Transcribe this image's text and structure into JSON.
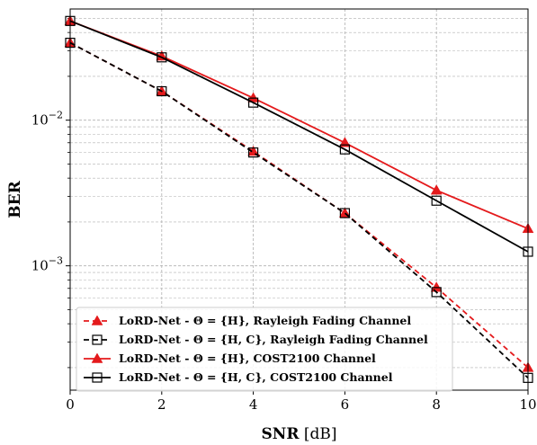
{
  "chart_data": {
    "type": "line",
    "xlabel": "SNR [dB]",
    "ylabel": "BER",
    "x_tick_labels": [
      "0",
      "2",
      "4",
      "6",
      "8",
      "10"
    ],
    "y_tick_labels": [
      "10^-2",
      "10^-3"
    ],
    "xlim": [
      0,
      10
    ],
    "ylim": [
      0.00014,
      0.058
    ],
    "y_scale": "log",
    "grid": true,
    "legend_position": "lower-left",
    "series": [
      {
        "name": "LoRD-Net - Θ = {H}, Rayleigh Fading Channel",
        "color": "#e41a1c",
        "line": "dashed",
        "marker": "triangle-filled",
        "x": [
          0,
          2,
          4,
          6,
          8,
          10
        ],
        "y": [
          0.034,
          0.0158,
          0.0061,
          0.0023,
          0.00071,
          0.0002
        ]
      },
      {
        "name": "LoRD-Net - Θ = {H, C}, Rayleigh Fading Channel",
        "color": "#000000",
        "line": "dashed",
        "marker": "square-open",
        "x": [
          0,
          2,
          4,
          6,
          8,
          10
        ],
        "y": [
          0.034,
          0.0158,
          0.006,
          0.0023,
          0.00066,
          0.00017
        ]
      },
      {
        "name": "LoRD-Net - Θ = {H}, COST2100 Channel",
        "color": "#e41a1c",
        "line": "solid",
        "marker": "triangle-filled",
        "x": [
          0,
          2,
          4,
          6,
          8,
          10
        ],
        "y": [
          0.048,
          0.0275,
          0.0142,
          0.007,
          0.0033,
          0.0018
        ]
      },
      {
        "name": "LoRD-Net - Θ = {H, C}, COST2100 Channel",
        "color": "#000000",
        "line": "solid",
        "marker": "square-open",
        "x": [
          0,
          2,
          4,
          6,
          8,
          10
        ],
        "y": [
          0.048,
          0.027,
          0.0132,
          0.0063,
          0.0028,
          0.00125
        ]
      }
    ]
  }
}
